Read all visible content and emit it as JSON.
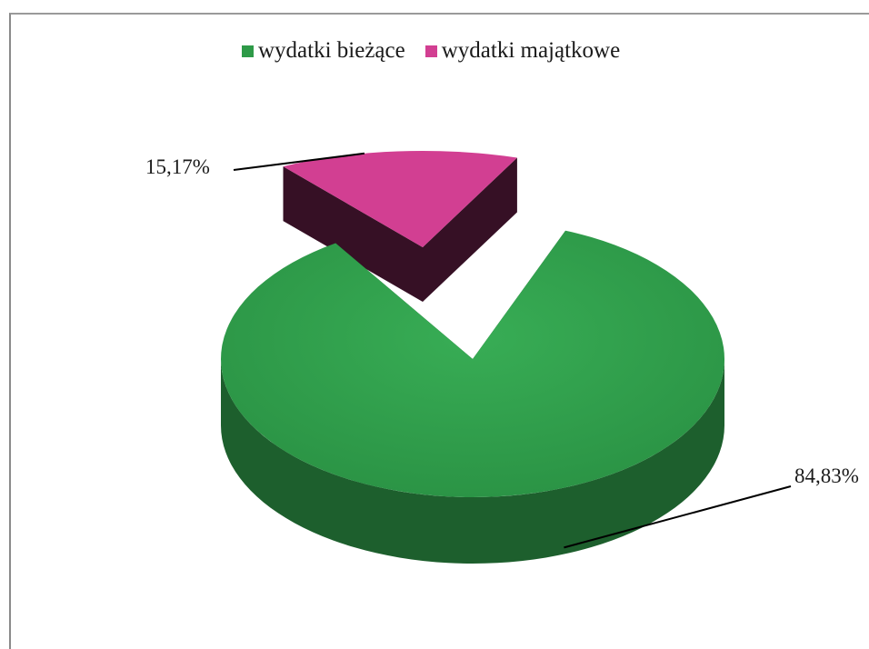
{
  "chart_data": {
    "type": "pie",
    "title": "",
    "categories": [
      "wydatki bieżące",
      "wydatki majątkowe"
    ],
    "values": [
      84.83,
      15.17
    ],
    "value_labels": [
      "84,83%",
      "15,17%"
    ],
    "colors": [
      "#2e9a48",
      "#d23f92"
    ],
    "legend_position": "top",
    "style": "3d-exploded"
  }
}
